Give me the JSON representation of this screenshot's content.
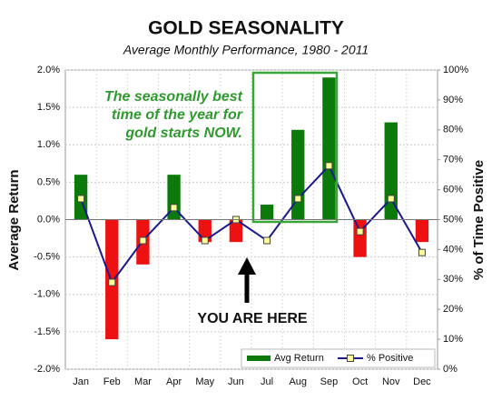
{
  "chart_data": {
    "type": "bar_line",
    "title": "GOLD SEASONALITY",
    "subtitle": "Average Monthly Performance, 1980 - 2011",
    "y_label": "Average Return",
    "y2_label": "% of Time Positive",
    "annotation_lines": [
      "The seasonally best",
      "time of the year for",
      "gold starts NOW."
    ],
    "marker_label": "YOU ARE HERE",
    "categories": [
      "Jan",
      "Feb",
      "Mar",
      "Apr",
      "May",
      "Jun",
      "Jul",
      "Aug",
      "Sep",
      "Oct",
      "Nov",
      "Dec"
    ],
    "series": [
      {
        "name": "Avg Return",
        "type": "bar",
        "color": "#0b7a0b",
        "negative_color": "#ee1111",
        "values": [
          0.6,
          -1.6,
          -0.6,
          0.6,
          -0.3,
          -0.3,
          0.2,
          1.2,
          1.9,
          -0.5,
          1.3,
          -0.3
        ]
      },
      {
        "name": "% Positive",
        "type": "line",
        "axis": "y2",
        "color": "#1a1a8c",
        "marker_color": "#ffff99",
        "values": [
          57,
          29,
          43,
          54,
          43,
          50,
          43,
          57,
          68,
          46,
          57,
          39
        ]
      }
    ],
    "ylim": [
      -2.0,
      2.0
    ],
    "yticks": [
      {
        "value": -2.0,
        "label": "-2.0%"
      },
      {
        "value": -1.5,
        "label": "-1.5%"
      },
      {
        "value": -1.0,
        "label": "-1.0%"
      },
      {
        "value": -0.5,
        "label": "-0.5%"
      },
      {
        "value": 0.0,
        "label": "0.0%"
      },
      {
        "value": 0.5,
        "label": "0.5%"
      },
      {
        "value": 1.0,
        "label": "1.0%"
      },
      {
        "value": 1.5,
        "label": "1.5%"
      },
      {
        "value": 2.0,
        "label": "2.0%"
      }
    ],
    "y2lim": [
      0,
      100
    ],
    "y2ticks": [
      {
        "value": 0,
        "label": "0%"
      },
      {
        "value": 10,
        "label": "10%"
      },
      {
        "value": 20,
        "label": "20%"
      },
      {
        "value": 30,
        "label": "30%"
      },
      {
        "value": 40,
        "label": "40%"
      },
      {
        "value": 50,
        "label": "50%"
      },
      {
        "value": 60,
        "label": "60%"
      },
      {
        "value": 70,
        "label": "70%"
      },
      {
        "value": 80,
        "label": "80%"
      },
      {
        "value": 90,
        "label": "90%"
      },
      {
        "value": 100,
        "label": "100%"
      }
    ],
    "grid": true,
    "legend": "bottom-right"
  }
}
